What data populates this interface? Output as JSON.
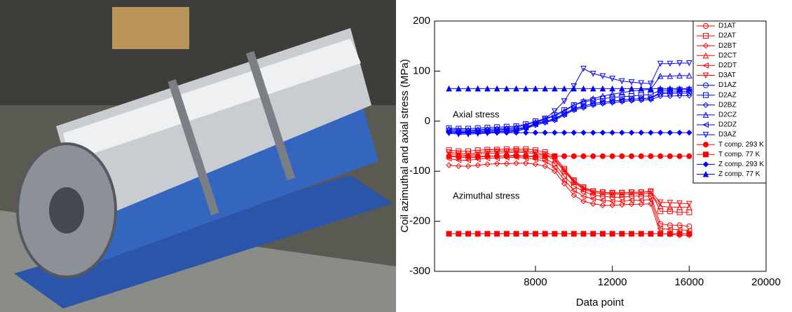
{
  "chart_data": {
    "type": "line",
    "xlabel": "Data point",
    "ylabel": "Coil azimuthal and axial stress (MPa)",
    "xlim": [
      2750,
      20000
    ],
    "xticks": [
      8000,
      12000,
      16000,
      20000
    ],
    "ylim": [
      -300,
      200
    ],
    "yticks": [
      -300,
      -200,
      -100,
      0,
      100,
      200
    ],
    "legend": "upper right",
    "annotations": [
      {
        "text": "Axial stress",
        "x": 3700,
        "y": 12,
        "color": "#0000ff"
      },
      {
        "text": "Azimuthal stress",
        "x": 3700,
        "y": -150,
        "color": "#ff0000"
      }
    ],
    "x": [
      3500,
      4000,
      4500,
      5000,
      5500,
      6000,
      6500,
      7000,
      7500,
      8000,
      8500,
      9000,
      9500,
      10000,
      10500,
      11000,
      11500,
      12000,
      12500,
      13000,
      13500,
      14000,
      14500,
      15000,
      15500,
      16000
    ],
    "series": [
      {
        "name": "D1AT",
        "color": "#ff0000",
        "marker": "circle",
        "filled": false,
        "values": [
          -70,
          -72,
          -73,
          -72,
          -70,
          -70,
          -69,
          -68,
          -70,
          -72,
          -75,
          -85,
          -110,
          -130,
          -140,
          -148,
          -150,
          -152,
          -152,
          -150,
          -150,
          -150,
          -205,
          -208,
          -208,
          -210
        ]
      },
      {
        "name": "D2AT",
        "color": "#ff0000",
        "marker": "square",
        "filled": false,
        "values": [
          -58,
          -60,
          -60,
          -58,
          -57,
          -57,
          -56,
          -56,
          -56,
          -58,
          -62,
          -70,
          -95,
          -118,
          -132,
          -140,
          -142,
          -143,
          -143,
          -142,
          -142,
          -140,
          -180,
          -180,
          -182,
          -182
        ]
      },
      {
        "name": "D2BT",
        "color": "#ff0000",
        "marker": "diamond",
        "filled": false,
        "values": [
          -88,
          -90,
          -90,
          -88,
          -86,
          -85,
          -85,
          -84,
          -84,
          -86,
          -90,
          -100,
          -125,
          -148,
          -160,
          -165,
          -168,
          -168,
          -167,
          -166,
          -166,
          -165,
          -225,
          -226,
          -228,
          -228
        ]
      },
      {
        "name": "D2CT",
        "color": "#ff0000",
        "marker": "triangle-up",
        "filled": false,
        "values": [
          -65,
          -67,
          -68,
          -66,
          -64,
          -64,
          -63,
          -62,
          -63,
          -65,
          -68,
          -78,
          -100,
          -122,
          -136,
          -142,
          -145,
          -146,
          -146,
          -145,
          -145,
          -144,
          -170,
          -172,
          -172,
          -172
        ]
      },
      {
        "name": "D2DT",
        "color": "#ff0000",
        "marker": "triangle-left",
        "filled": false,
        "values": [
          -75,
          -78,
          -78,
          -76,
          -74,
          -74,
          -73,
          -72,
          -74,
          -76,
          -80,
          -92,
          -118,
          -138,
          -150,
          -155,
          -158,
          -160,
          -160,
          -158,
          -158,
          -157,
          -215,
          -216,
          -217,
          -218
        ]
      },
      {
        "name": "D3AT",
        "color": "#ff0000",
        "marker": "triangle-down",
        "filled": false,
        "values": [
          -62,
          -64,
          -65,
          -63,
          -61,
          -60,
          -60,
          -59,
          -60,
          -62,
          -66,
          -74,
          -98,
          -120,
          -134,
          -140,
          -142,
          -144,
          -143,
          -142,
          -142,
          -141,
          -162,
          -163,
          -164,
          -165
        ]
      },
      {
        "name": "D1AZ",
        "color": "#0000ff",
        "marker": "circle",
        "filled": false,
        "values": [
          -18,
          -20,
          -20,
          -19,
          -18,
          -17,
          -16,
          -15,
          -12,
          -5,
          0,
          5,
          15,
          25,
          30,
          35,
          38,
          40,
          42,
          44,
          45,
          46,
          55,
          55,
          56,
          56
        ]
      },
      {
        "name": "D2AZ",
        "color": "#0000ff",
        "marker": "square",
        "filled": false,
        "values": [
          -14,
          -15,
          -15,
          -14,
          -13,
          -12,
          -11,
          -10,
          -6,
          0,
          5,
          12,
          22,
          32,
          38,
          42,
          45,
          47,
          49,
          50,
          52,
          53,
          62,
          62,
          63,
          63
        ]
      },
      {
        "name": "D2BZ",
        "color": "#0000ff",
        "marker": "diamond",
        "filled": false,
        "values": [
          -22,
          -24,
          -24,
          -23,
          -22,
          -21,
          -20,
          -19,
          -15,
          -8,
          -3,
          2,
          12,
          22,
          27,
          32,
          35,
          37,
          39,
          41,
          42,
          43,
          50,
          50,
          51,
          51
        ]
      },
      {
        "name": "D2CZ",
        "color": "#0000ff",
        "marker": "triangle-up",
        "filled": false,
        "values": [
          -16,
          -17,
          -18,
          -17,
          -16,
          -15,
          -14,
          -12,
          -8,
          -2,
          4,
          10,
          20,
          32,
          40,
          45,
          50,
          54,
          57,
          60,
          62,
          64,
          90,
          90,
          91,
          91
        ]
      },
      {
        "name": "D2DZ",
        "color": "#0000ff",
        "marker": "triangle-left",
        "filled": false,
        "values": [
          -20,
          -22,
          -22,
          -21,
          -20,
          -19,
          -18,
          -17,
          -13,
          -6,
          -1,
          4,
          14,
          24,
          30,
          35,
          38,
          40,
          42,
          44,
          45,
          46,
          58,
          58,
          59,
          59
        ]
      },
      {
        "name": "D3AZ",
        "color": "#0000ff",
        "marker": "triangle-down",
        "filled": false,
        "values": [
          -24,
          -26,
          -26,
          -25,
          -24,
          -23,
          -22,
          -20,
          -15,
          -5,
          5,
          20,
          40,
          70,
          105,
          95,
          90,
          85,
          80,
          78,
          76,
          75,
          115,
          115,
          116,
          116
        ]
      },
      {
        "name": "T comp. 293 K",
        "color": "#ff0000",
        "marker": "circle",
        "filled": true,
        "values": [
          -70,
          -70,
          -70,
          -70,
          -70,
          -70,
          -70,
          -70,
          -70,
          -70,
          -70,
          -70,
          -70,
          -70,
          -70,
          -70,
          -70,
          -70,
          -70,
          -70,
          -70,
          -70,
          -70,
          -70,
          -70,
          -70
        ]
      },
      {
        "name": "T comp. 77 K",
        "color": "#ff0000",
        "marker": "square",
        "filled": true,
        "values": [
          -225,
          -225,
          -225,
          -225,
          -225,
          -225,
          -225,
          -225,
          -225,
          -225,
          -225,
          -225,
          -225,
          -225,
          -225,
          -225,
          -225,
          -225,
          -225,
          -225,
          -225,
          -225,
          -225,
          -225,
          -225,
          -225
        ]
      },
      {
        "name": "Z comp. 293 K",
        "color": "#0000ff",
        "marker": "diamond",
        "filled": true,
        "values": [
          -23,
          -23,
          -23,
          -23,
          -23,
          -23,
          -23,
          -23,
          -23,
          -23,
          -23,
          -23,
          -23,
          -23,
          -23,
          -23,
          -23,
          -23,
          -23,
          -23,
          -23,
          -23,
          -23,
          -23,
          -23,
          -23
        ]
      },
      {
        "name": "Z comp. 77 K",
        "color": "#0000ff",
        "marker": "triangle-up",
        "filled": true,
        "values": [
          65,
          65,
          65,
          65,
          65,
          65,
          65,
          65,
          65,
          65,
          65,
          65,
          65,
          65,
          65,
          65,
          65,
          65,
          65,
          65,
          65,
          65,
          65,
          65,
          65,
          65
        ]
      }
    ]
  }
}
